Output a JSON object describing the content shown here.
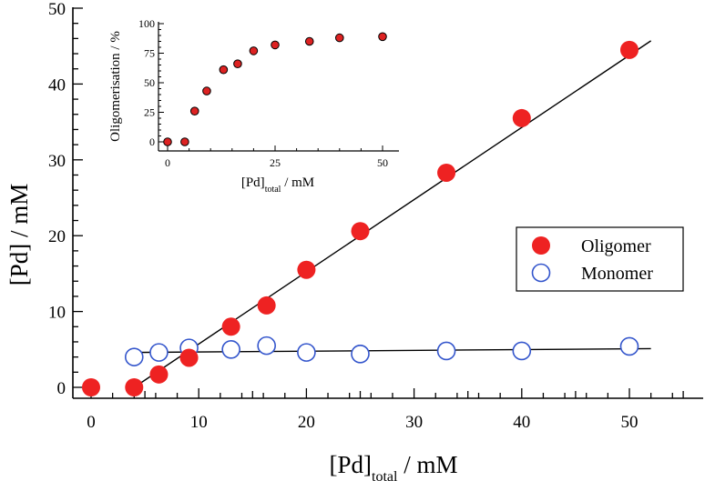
{
  "chart_data": [
    {
      "type": "scatter",
      "title": "",
      "xlabel": "[Pd]",
      "xlabel_sub": "total",
      "xlabel_unit": " / mM",
      "ylabel": "[Pd] / mM",
      "xlim": [
        0,
        55
      ],
      "ylim": [
        0,
        50
      ],
      "x_ticks": [
        "0",
        "10",
        "20",
        "30",
        "40",
        "50"
      ],
      "y_ticks": [
        "0",
        "10",
        "20",
        "30",
        "40",
        "50"
      ],
      "legend_position": "right",
      "series": [
        {
          "name": "Oligomer",
          "marker": "filled-circle",
          "color": "#ee2222",
          "x": [
            0,
            4,
            6.3,
            9.1,
            13,
            16.3,
            20,
            25,
            33,
            40,
            50
          ],
          "y": [
            0,
            0,
            1.7,
            3.9,
            8.0,
            10.8,
            15.5,
            20.6,
            28.3,
            35.5,
            44.5
          ]
        },
        {
          "name": "Monomer",
          "marker": "open-circle",
          "color": "#3355cc",
          "x": [
            4,
            6.3,
            9.1,
            13,
            16.3,
            20,
            25,
            33,
            40,
            50
          ],
          "y": [
            4.0,
            4.6,
            5.2,
            5.0,
            5.5,
            4.6,
            4.4,
            4.8,
            4.8,
            5.4
          ]
        }
      ],
      "fit_lines": [
        {
          "x": [
            4,
            52
          ],
          "y": [
            0,
            45.7
          ],
          "color": "#000000"
        },
        {
          "x": [
            4,
            52
          ],
          "y": [
            4.6,
            5.1
          ],
          "color": "#000000"
        }
      ]
    },
    {
      "type": "scatter",
      "title": "",
      "xlabel": "[Pd]",
      "xlabel_sub": "total",
      "xlabel_unit": " / mM",
      "ylabel": "Oligomerisation / %",
      "xlim": [
        0,
        52
      ],
      "ylim": [
        0,
        100
      ],
      "x_ticks": [
        "0",
        "25",
        "50"
      ],
      "y_ticks": [
        "0",
        "25",
        "50",
        "75",
        "100"
      ],
      "series": [
        {
          "name": "",
          "marker": "filled-circle",
          "color": "#dd2222",
          "x": [
            0,
            4,
            6.3,
            9.1,
            13,
            16.3,
            20,
            25,
            33,
            40,
            50
          ],
          "y": [
            0,
            0,
            26,
            43,
            61,
            66,
            77,
            82,
            85,
            88,
            89
          ]
        }
      ]
    }
  ],
  "legend": {
    "oligomer_label": "Oligomer",
    "monomer_label": "Monomer"
  }
}
